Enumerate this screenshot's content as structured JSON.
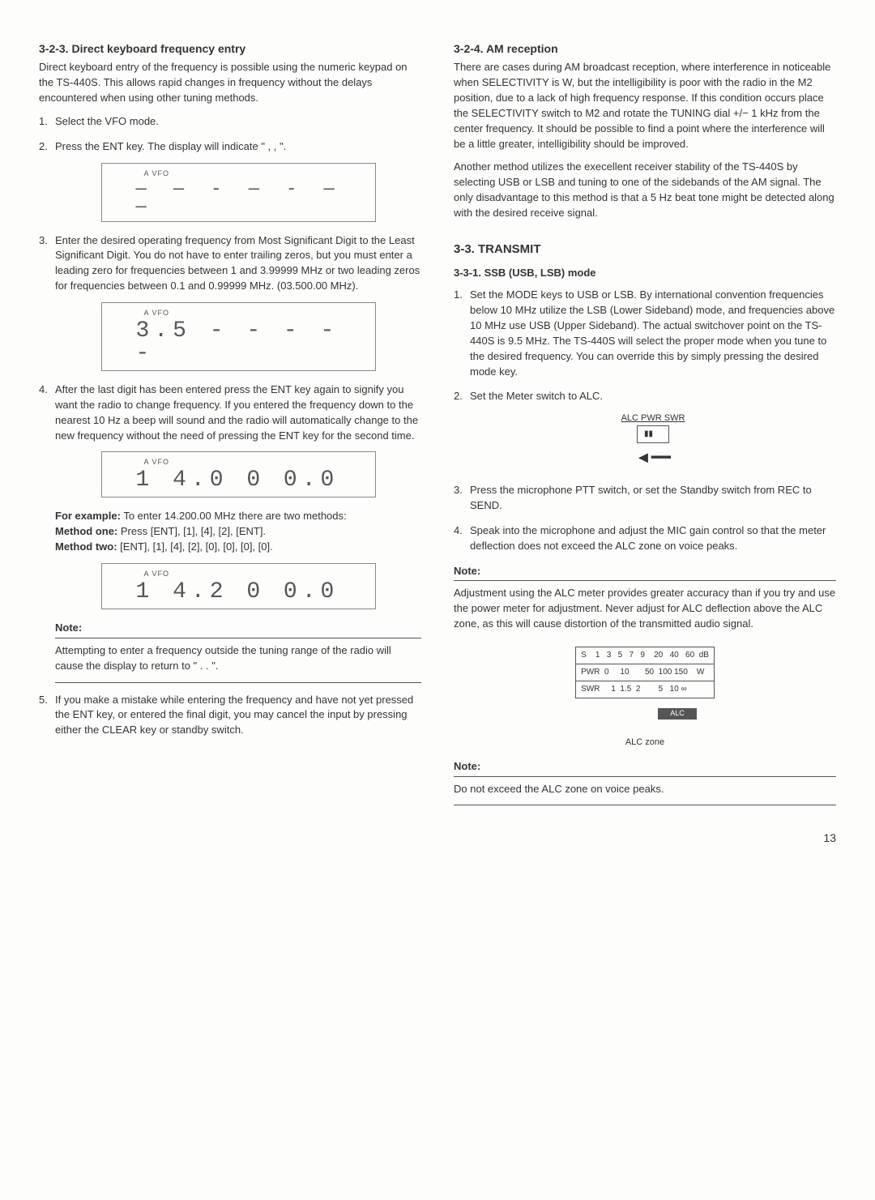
{
  "left": {
    "sec_323_title": "3-2-3. Direct keyboard frequency entry",
    "sec_323_intro": "Direct keyboard entry of the frequency is possible using the numeric keypad on the TS-440S. This allows rapid changes in frequency without the delays encountered when using other tuning methods.",
    "step1": "Select the VFO mode.",
    "step2": "Press the ENT key. The display will indicate \" , , \".",
    "disp1_label": "A   VFO",
    "disp1_value": "— — - — - — —",
    "step3": "Enter the desired operating frequency from Most Significant Digit to the Least Significant Digit. You do not have to enter trailing zeros, but you must enter a leading zero for frequencies between 1 and 3.99999 MHz or two leading zeros for frequencies between 0.1 and 0.99999 MHz. (03.500.00 MHz).",
    "disp2_label": "A   VFO",
    "disp2_value": "3.5 - - - - -",
    "step4": "After the last digit has been entered press the ENT key again to signify you want the radio to change frequency. If you entered the frequency down to the nearest 10 Hz a beep will sound and the radio will automatically change to the new frequency without the need of pressing the ENT key for the second time.",
    "disp3_label": "A   VFO",
    "disp3_value": "1 4.0 0 0.0",
    "example_label": "For example:",
    "example_text": "To enter 14.200.00 MHz there are two methods:",
    "method1_label": "Method one:",
    "method1_text": "Press [ENT], [1], [4], [2], [ENT].",
    "method2_label": "Method two:",
    "method2_text": "[ENT], [1], [4], [2], [0], [0], [0], [0].",
    "disp4_label": "A   VFO",
    "disp4_value": "1 4.2 0 0.0",
    "note1_label": "Note:",
    "note1_text": "Attempting to enter a frequency outside the tuning range of the radio will cause the display to return to \" . . \".",
    "step5": "If you make a mistake while entering the frequency and have not yet pressed the ENT key, or entered the final digit, you may cancel the input by pressing either the CLEAR key or standby switch."
  },
  "right": {
    "sec_324_title": "3-2-4. AM reception",
    "sec_324_p1": "There are cases during AM broadcast reception, where interference in noticeable when SELECTIVITY is W, but the intelligibility is poor with the radio in the M2 position, due to a lack of high frequency response. If this condition occurs place the SELECTIVITY switch to M2 and rotate the TUNING dial +/− 1 kHz from the center frequency. It should be possible to find a point where the interference will be a little greater, intelligibility should be improved.",
    "sec_324_p2": "Another method utilizes the execellent receiver stability of the TS-440S by selecting USB or LSB and tuning to one of the sidebands of the AM signal. The only disadvantage to this method is that a 5 Hz beat tone might be detected along with the desired receive signal.",
    "sec_33_title": "3-3. TRANSMIT",
    "sec_331_title": "3-3-1. SSB (USB, LSB) mode",
    "t_step1": "Set the MODE keys to USB or LSB. By international convention frequencies below 10 MHz utilize the LSB (Lower Sideband) mode, and frequencies above 10 MHz use USB (Upper Sideband). The actual switchover point on the TS-440S is 9.5 MHz. The TS-440S will select the proper mode when you tune to the desired frequency. You can override this by simply pressing the desired mode key.",
    "t_step2": "Set the Meter switch to ALC.",
    "meter_labels": "ALC  PWR  SWR",
    "t_step3": "Press the microphone PTT switch, or set the Standby switch from REC to SEND.",
    "t_step4": "Speak into the microphone and adjust the MIC gain control so that the meter deflection does not exceed the ALC zone on voice peaks.",
    "note2_label": "Note:",
    "note2_text": "Adjustment using the ALC meter provides greater accuracy than if you try and use the power meter for adjustment. Never adjust for ALC deflection above the ALC zone, as this will cause distortion of the transmitted audio signal.",
    "smeter_s_row": "S    1   3   5   7   9    20   40   60  dB",
    "smeter_pwr_row": "PWR  0     10       50  100 150    W",
    "smeter_swr_row": "SWR     1  1.5  2        5   10 ∞",
    "alc_bar_label": "ALC",
    "alc_zone_label": "ALC zone",
    "note3_label": "Note:",
    "note3_text": "Do not exceed the ALC zone on voice peaks."
  },
  "page_number": "13"
}
